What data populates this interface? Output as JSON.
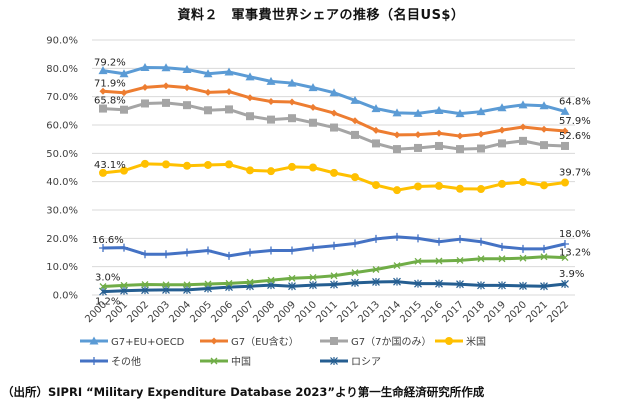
{
  "title": "資料２　軍事費世界シェアの推移（名目US$）",
  "source": "（出所）SIPRI “Military Expenditure Database 2023”より第一生命経済研究所作成",
  "chart_data": {
    "type": "line",
    "title": "資料２　軍事費世界シェアの推移（名目US$）",
    "xlabel": "",
    "ylabel": "",
    "ylim": [
      0,
      90
    ],
    "y_tick_step": 10,
    "y_tick_labels": [
      "0.0%",
      "10.0%",
      "20.0%",
      "30.0%",
      "40.0%",
      "50.0%",
      "60.0%",
      "70.0%",
      "80.0%",
      "90.0%"
    ],
    "grid": true,
    "legend_position": "bottom",
    "x": [
      "2000",
      "2001",
      "2002",
      "2003",
      "2004",
      "2005",
      "2006",
      "2007",
      "2008",
      "2009",
      "2010",
      "2011",
      "2012",
      "2013",
      "2014",
      "2015",
      "2016",
      "2017",
      "2018",
      "2019",
      "2020",
      "2021",
      "2022"
    ],
    "series": [
      {
        "name": "G7+EU+OECD",
        "color": "#5B9BD5",
        "marker": "triangle",
        "values": [
          79.2,
          78.1,
          80.3,
          80.2,
          79.6,
          78.1,
          78.7,
          77.0,
          75.4,
          74.8,
          73.2,
          71.4,
          68.7,
          65.8,
          64.3,
          64.1,
          65.1,
          64.0,
          64.7,
          66.1,
          67.1,
          66.8,
          64.8
        ],
        "labels": {
          "first": "79.2%",
          "last": "64.8%"
        }
      },
      {
        "name": "G7（EU含む）",
        "color": "#ED7D31",
        "marker": "diamond",
        "values": [
          71.9,
          71.4,
          73.3,
          73.8,
          73.2,
          71.5,
          71.8,
          69.6,
          68.3,
          68.1,
          66.2,
          64.2,
          61.5,
          58.1,
          56.5,
          56.6,
          57.1,
          56.1,
          56.8,
          58.2,
          59.3,
          58.5,
          57.9
        ],
        "labels": {
          "first": "71.9%",
          "last": "57.9%"
        }
      },
      {
        "name": "G7（7か国のみ）",
        "color": "#A5A5A5",
        "marker": "square",
        "values": [
          65.8,
          65.4,
          67.6,
          67.8,
          67.0,
          65.2,
          65.5,
          63.1,
          61.9,
          62.4,
          60.8,
          59.1,
          56.5,
          53.5,
          51.5,
          51.9,
          52.6,
          51.5,
          51.7,
          53.5,
          54.4,
          52.9,
          52.6
        ],
        "labels": {
          "first": "65.8%",
          "last": "52.6%"
        }
      },
      {
        "name": "米国",
        "color": "#FFC000",
        "marker": "circle",
        "values": [
          43.1,
          43.9,
          46.3,
          46.1,
          45.6,
          45.9,
          46.1,
          44.0,
          43.7,
          45.2,
          45.0,
          43.1,
          41.6,
          38.8,
          37.0,
          38.3,
          38.5,
          37.5,
          37.4,
          39.2,
          39.9,
          38.7,
          39.7
        ],
        "labels": {
          "first": "43.1%",
          "last": "39.7%"
        }
      },
      {
        "name": "その他",
        "color": "#4472C4",
        "marker": "plus",
        "values": [
          16.6,
          16.7,
          14.4,
          14.4,
          15.0,
          15.7,
          13.8,
          15.0,
          15.7,
          15.7,
          16.7,
          17.4,
          18.2,
          19.8,
          20.5,
          20.0,
          18.8,
          19.7,
          18.8,
          17.0,
          16.3,
          16.3,
          18.0
        ],
        "labels": {
          "first": "16.6%",
          "last": "18.0%"
        }
      },
      {
        "name": "中国",
        "color": "#70AD47",
        "marker": "x",
        "values": [
          3.0,
          3.4,
          3.7,
          3.6,
          3.6,
          3.9,
          4.1,
          4.5,
          5.2,
          5.9,
          6.2,
          6.8,
          7.9,
          9.0,
          10.4,
          11.9,
          12.0,
          12.2,
          12.8,
          12.8,
          13.0,
          13.5,
          13.2
        ],
        "labels": {
          "first": "3.0%",
          "last": "13.2%"
        }
      },
      {
        "name": "ロシア",
        "color": "#255E91",
        "marker": "star",
        "values": [
          1.2,
          1.5,
          1.7,
          1.8,
          1.8,
          2.3,
          2.8,
          3.1,
          3.5,
          3.1,
          3.5,
          3.7,
          4.3,
          4.6,
          4.7,
          4.0,
          4.0,
          3.8,
          3.4,
          3.4,
          3.2,
          3.1,
          3.9
        ],
        "labels": {
          "first": "1.2%",
          "last": "3.9%"
        }
      }
    ]
  }
}
